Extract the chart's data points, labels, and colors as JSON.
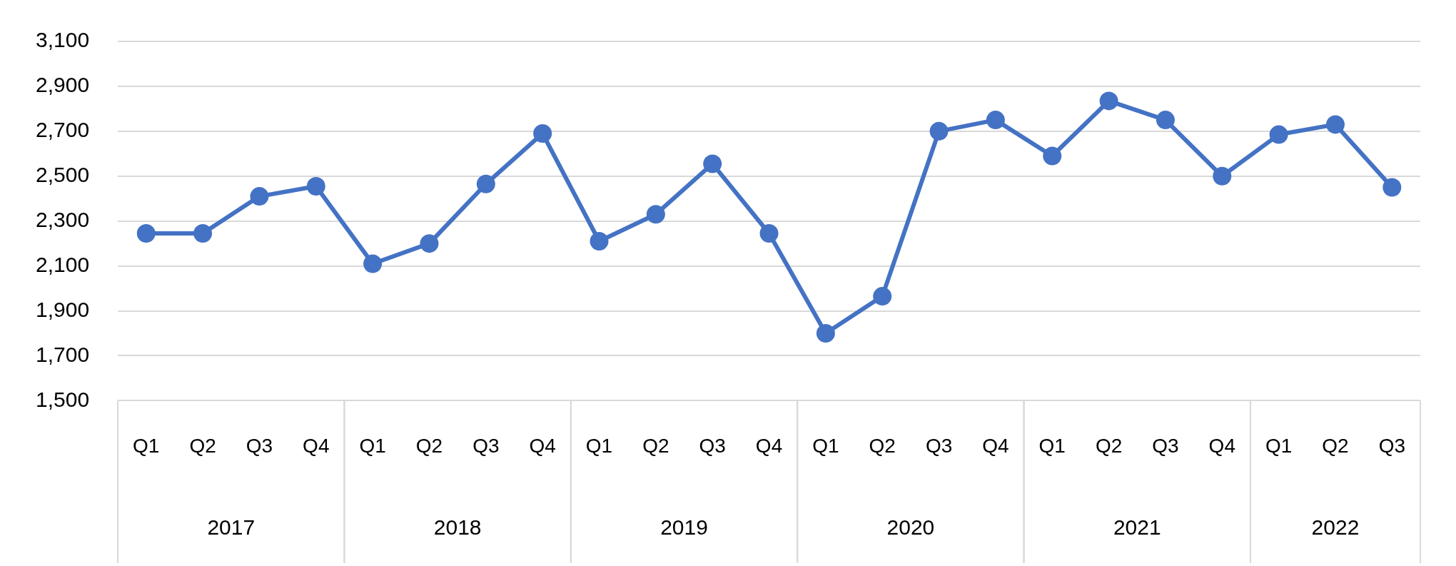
{
  "chart_data": {
    "type": "line",
    "categories": [
      "Q1",
      "Q2",
      "Q3",
      "Q4",
      "Q1",
      "Q2",
      "Q3",
      "Q4",
      "Q1",
      "Q2",
      "Q3",
      "Q4",
      "Q1",
      "Q2",
      "Q3",
      "Q4",
      "Q1",
      "Q2",
      "Q3",
      "Q4",
      "Q1",
      "Q2",
      "Q3"
    ],
    "series": [
      {
        "color": "#4472c4",
        "values": [
          2245,
          2245,
          2410,
          2455,
          2110,
          2200,
          2465,
          2690,
          2210,
          2330,
          2555,
          2245,
          1800,
          1965,
          2700,
          2750,
          2590,
          2835,
          2750,
          2500,
          2685,
          2730,
          2450
        ]
      }
    ],
    "annotations": [
      "2017",
      "2018",
      "2019",
      "2020",
      "2021",
      "2022"
    ],
    "ylim": [
      1500,
      3100
    ],
    "yticks": [
      {
        "value": 1500,
        "label": "1,500"
      },
      {
        "value": 1700,
        "label": "1,700"
      },
      {
        "value": 1900,
        "label": "1,900"
      },
      {
        "value": 2100,
        "label": "2,100"
      },
      {
        "value": 2300,
        "label": "2,300"
      },
      {
        "value": 2500,
        "label": "2,500"
      },
      {
        "value": 2700,
        "label": "2,700"
      },
      {
        "value": 2900,
        "label": "2,900"
      },
      {
        "value": 3100,
        "label": "3,100"
      }
    ],
    "grid": "y",
    "legend": false,
    "marker": "circle",
    "line_style": "solid"
  }
}
